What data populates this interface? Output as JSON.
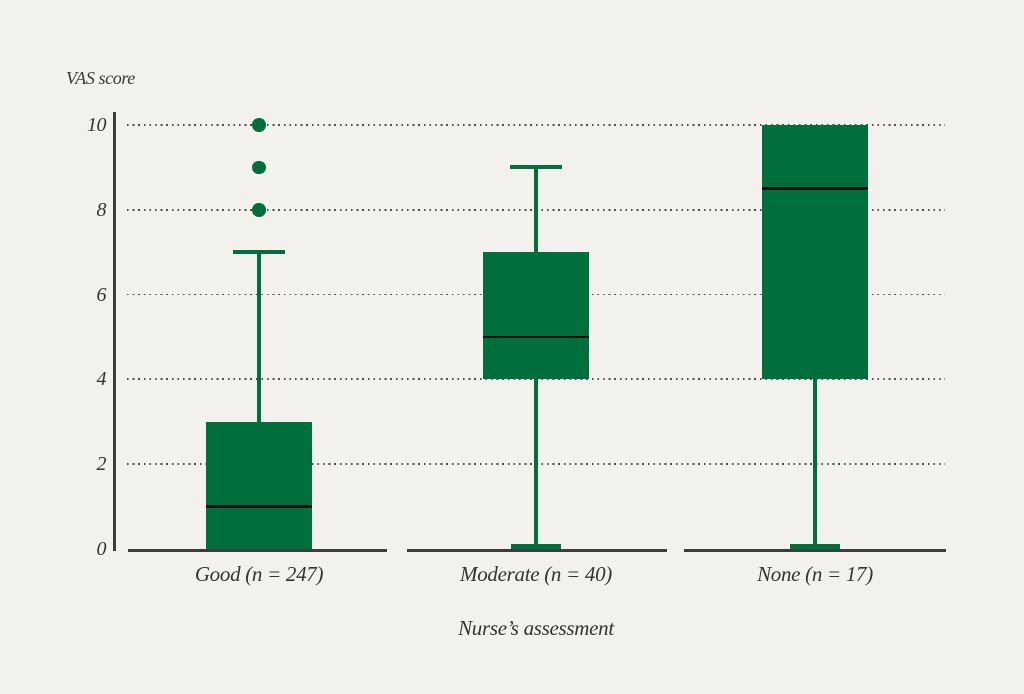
{
  "chart_data": {
    "type": "boxplot",
    "title": "",
    "ylabel": "VAS score",
    "xlabel": "Nurse’s assessment",
    "ylim": [
      0,
      10
    ],
    "yticks": [
      0,
      2,
      4,
      6,
      8,
      10
    ],
    "grid": {
      "style": "dotted",
      "orientation": "horizontal",
      "at": [
        2,
        4,
        6,
        8,
        10
      ]
    },
    "legend": "none",
    "categories": [
      "Good (n = 247)",
      "Moderate (n = 40)",
      "None (n = 17)"
    ],
    "series": [
      {
        "label": "Good (n = 247)",
        "n": 247,
        "min": 0,
        "q1": 0,
        "median": 1,
        "q3": 3,
        "whisker_high": 7,
        "outliers": [
          8,
          9,
          10
        ]
      },
      {
        "label": "Moderate (n = 40)",
        "n": 40,
        "min": 0,
        "q1": 4,
        "median": 5,
        "q3": 7,
        "whisker_high": 9,
        "outliers": []
      },
      {
        "label": "None (n = 17)",
        "n": 17,
        "min": 0,
        "q1": 4,
        "median": 8.5,
        "q3": 10,
        "whisker_high": 10,
        "outliers": []
      }
    ],
    "colors": {
      "background": "#f2f1ee",
      "box_fill": "#006f3c",
      "median": "#121212",
      "axis": "#3c3c3c",
      "gridline": "#4d4d4d"
    }
  }
}
